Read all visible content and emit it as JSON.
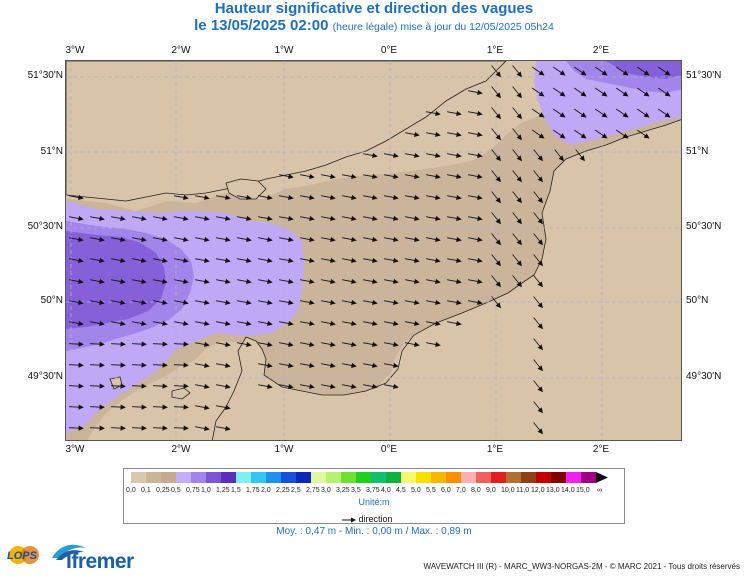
{
  "header": {
    "title": "Hauteur significative et direction des vagues",
    "date_line": "le 13/05/2025 02:00",
    "date_note": "(heure légale) mise à jour du 12/05/2025 05h24"
  },
  "map": {
    "lon_ticks": [
      "3°W",
      "2°W",
      "1°W",
      "0°E",
      "1°E",
      "2°E"
    ],
    "lat_ticks_left": [
      "51°30'N",
      "51°N",
      "50°30'N",
      "50°N",
      "49°30'N"
    ],
    "lat_ticks_right": [
      "51°30'N",
      "51°N",
      "50°30'N",
      "50°N",
      "49°30'N"
    ],
    "colors": {
      "land": "#d8c4a8",
      "sea_bin_025_05": "#cbb59a",
      "sea_bin_05_075": "#bfa8f5",
      "sea_bin_075_10": "#a285eb",
      "sea_bin_10_125": "#8560d8",
      "grid": "#aab0d8",
      "arrow": "#111111"
    }
  },
  "legend": {
    "bins": [
      {
        "label": "0,0",
        "color": "#d9c8b0"
      },
      {
        "label": "0,1",
        "color": "#ccb497"
      },
      {
        "label": "0,25",
        "color": "#c4aa90"
      },
      {
        "label": "0,5",
        "color": "#c2aef5"
      },
      {
        "label": "0,75",
        "color": "#a285eb"
      },
      {
        "label": "1,0",
        "color": "#7b55d4"
      },
      {
        "label": "1,25",
        "color": "#5b2fb8"
      },
      {
        "label": "1,5",
        "color": "#7ff0f0"
      },
      {
        "label": "1,75",
        "color": "#30c8f0"
      },
      {
        "label": "2,0",
        "color": "#1e90f0"
      },
      {
        "label": "2,25",
        "color": "#1450d8"
      },
      {
        "label": "2,5",
        "color": "#0a28b4"
      },
      {
        "label": "2,75",
        "color": "#e0f8a0"
      },
      {
        "label": "3,0",
        "color": "#b8f070"
      },
      {
        "label": "3,25",
        "color": "#70e030"
      },
      {
        "label": "3,5",
        "color": "#20d020"
      },
      {
        "label": "3,75",
        "color": "#10c070"
      },
      {
        "label": "4,0",
        "color": "#10b040"
      },
      {
        "label": "4,5",
        "color": "#f8f870"
      },
      {
        "label": "5,0",
        "color": "#f8e000"
      },
      {
        "label": "5,5",
        "color": "#f8b800"
      },
      {
        "label": "6,0",
        "color": "#f89000"
      },
      {
        "label": "7,0",
        "color": "#f8b0b0"
      },
      {
        "label": "8,0",
        "color": "#f06060"
      },
      {
        "label": "9,0",
        "color": "#e02020"
      },
      {
        "label": "10,0",
        "color": "#b07030"
      },
      {
        "label": "11,0",
        "color": "#904010"
      },
      {
        "label": "12,0",
        "color": "#c00000"
      },
      {
        "label": "13,0",
        "color": "#800000"
      },
      {
        "label": "14,0",
        "color": "#f020f0"
      },
      {
        "label": "15,0",
        "color": "#a00080"
      }
    ],
    "end_label": "∞",
    "unit_label": "Unité:m",
    "direction_label": "direction"
  },
  "stats": {
    "text": "Moy. : 0,47 m   -   Min. : 0,00 m / Max. : 0,89 m"
  },
  "footer": {
    "credits": "WAVEWATCH III (R) - MARC_WW3-NORGAS-2M - © MARC 2021 - Tous droits réservés",
    "logo_lops": "LOPS",
    "logo_ifremer": "Ifremer"
  }
}
